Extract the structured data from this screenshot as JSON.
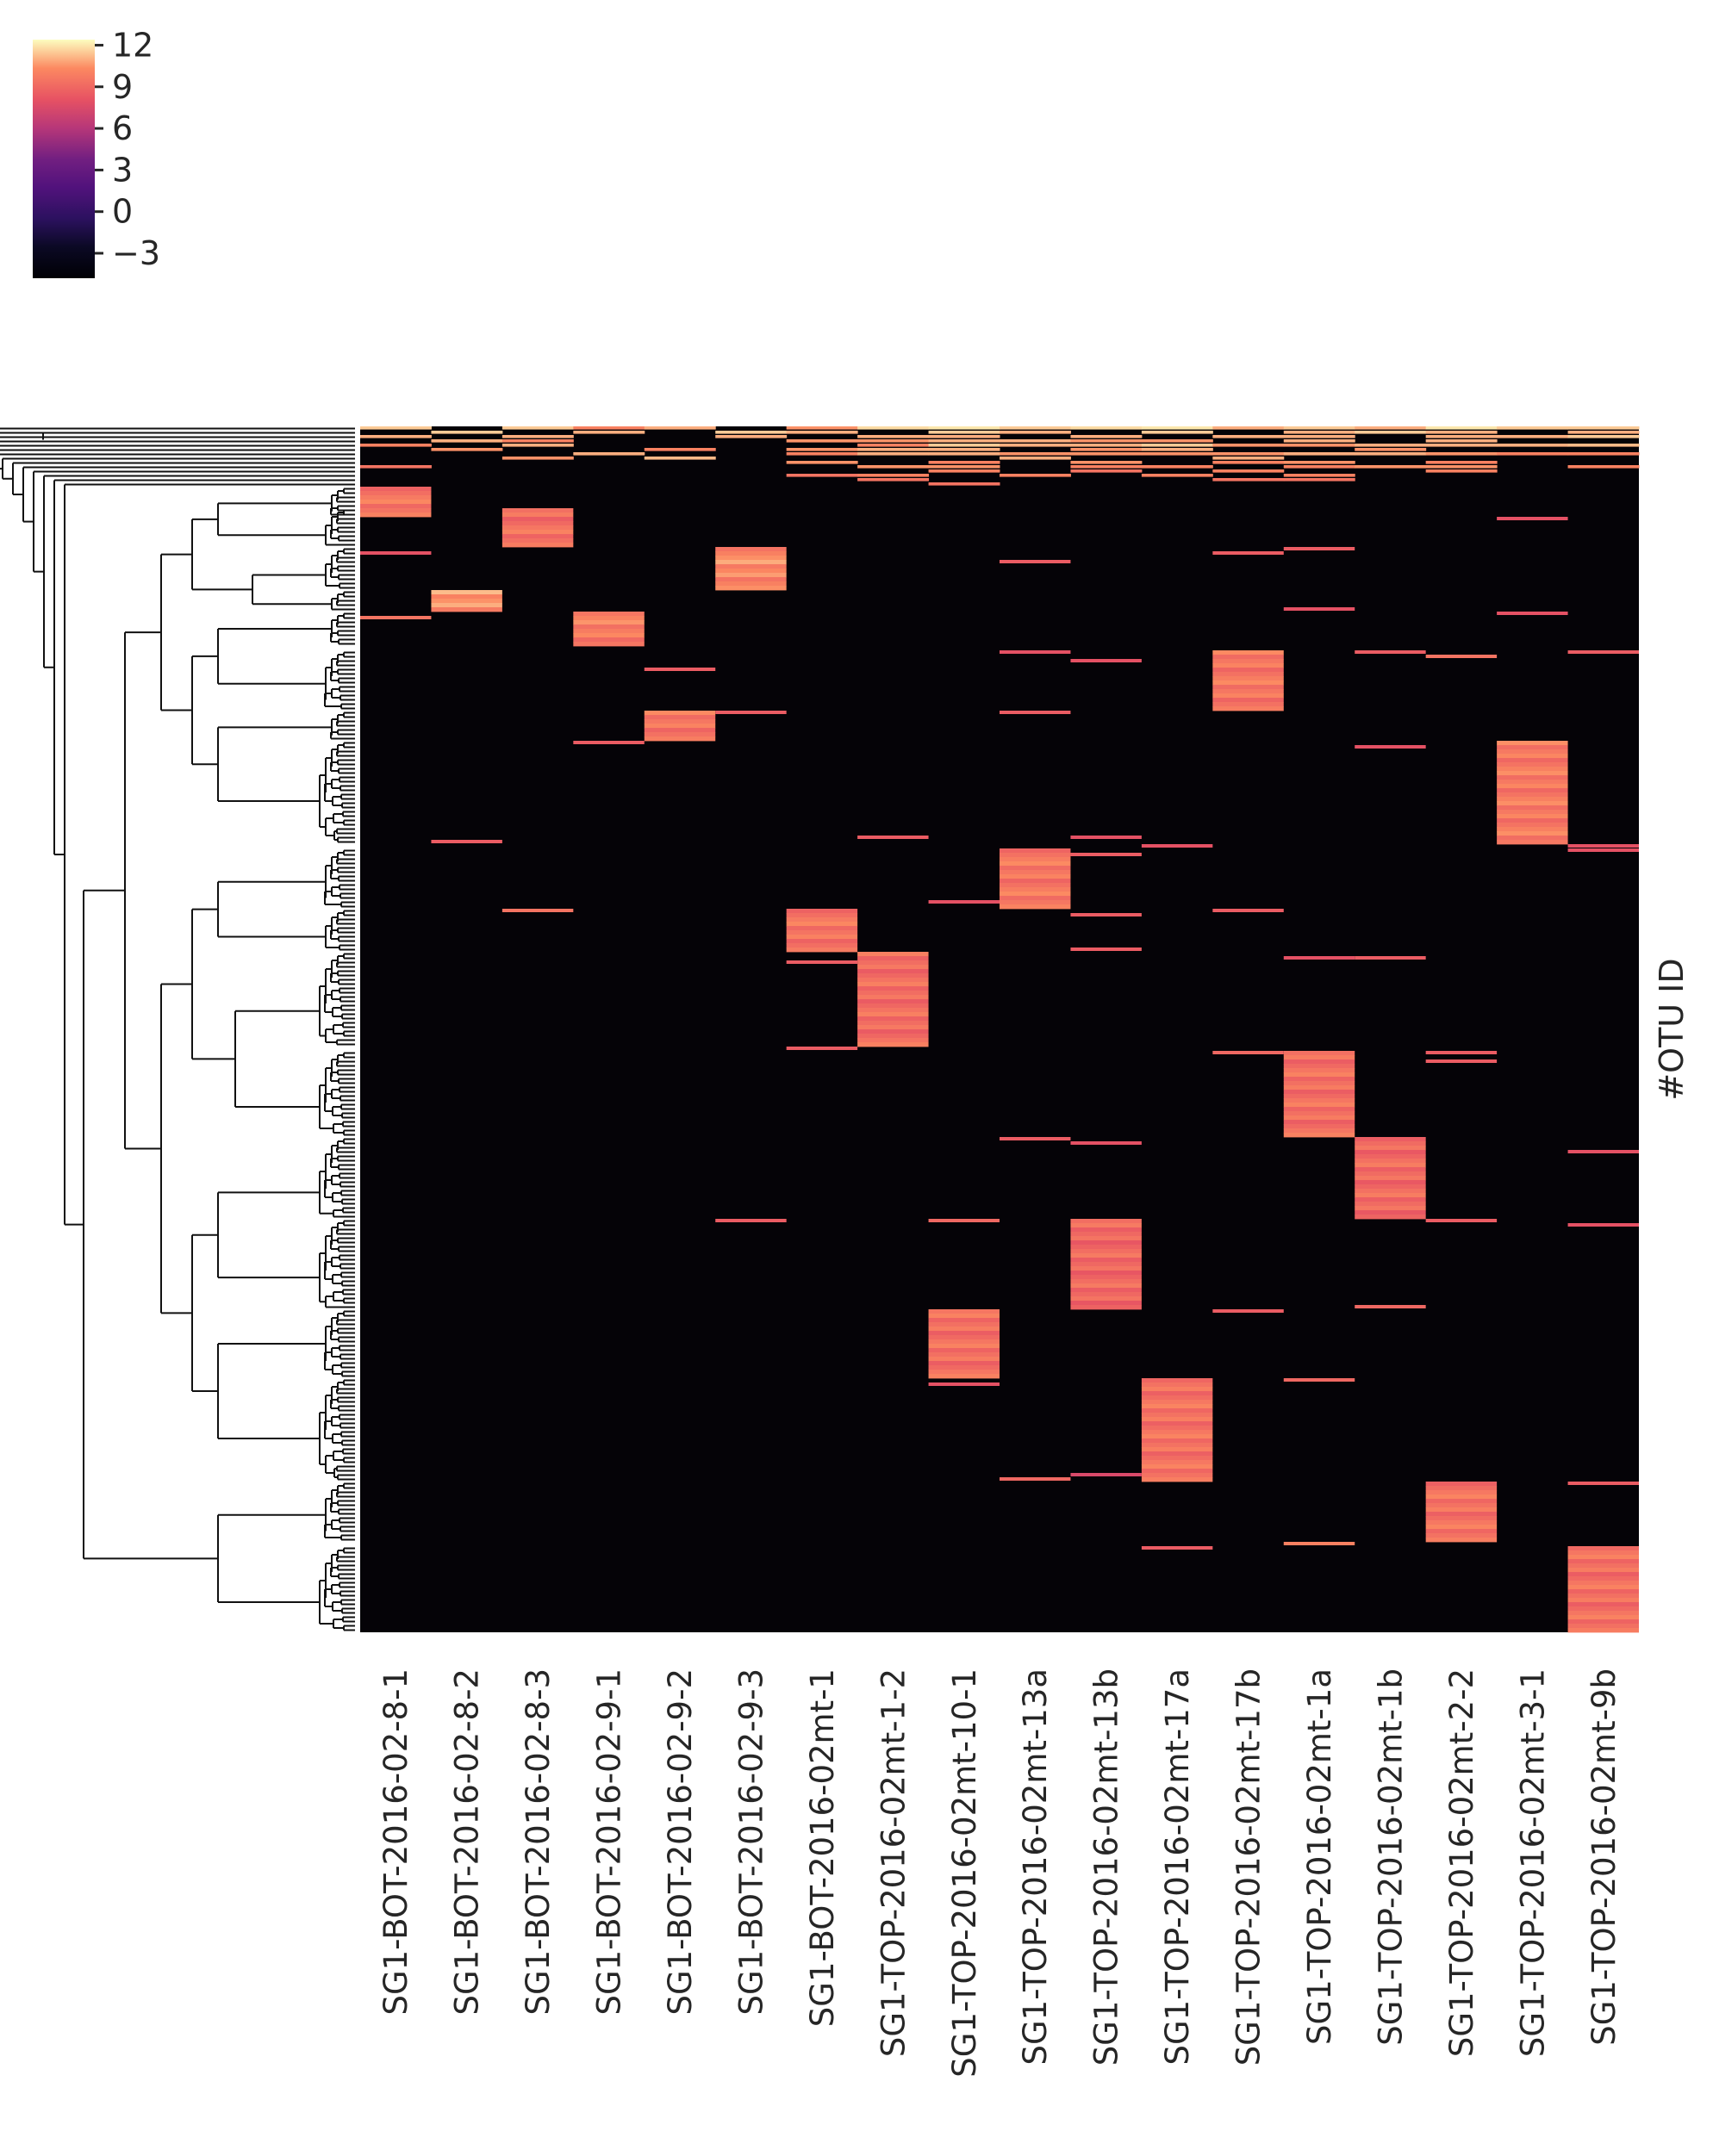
{
  "chart_data": {
    "type": "heatmap",
    "subtype": "clustermap",
    "colormap": "magma",
    "ylabel": "#OTU ID",
    "colorbar": {
      "vmin": -4.8,
      "vmax": 12.4,
      "ticks": [
        12,
        9,
        6,
        3,
        0,
        -3
      ],
      "tick_labels": [
        "12",
        "9",
        "6",
        "3",
        "0",
        "−3"
      ],
      "placement": "top-left"
    },
    "row_dendrogram": true,
    "n_rows": 280,
    "background_value": -4.8,
    "columns": [
      "SG1-BOT-2016-02-8-1",
      "SG1-BOT-2016-02-8-2",
      "SG1-BOT-2016-02-8-3",
      "SG1-BOT-2016-02-9-1",
      "SG1-BOT-2016-02-9-2",
      "SG1-BOT-2016-02-9-3",
      "SG1-BOT-2016-02mt-1",
      "SG1-TOP-2016-02mt-1-2",
      "SG1-TOP-2016-02mt-10-1",
      "SG1-TOP-2016-02mt-13a",
      "SG1-TOP-2016-02mt-13b",
      "SG1-TOP-2016-02mt-17a",
      "SG1-TOP-2016-02mt-17b",
      "SG1-TOP-2016-02mt-1a",
      "SG1-TOP-2016-02mt-1b",
      "SG1-TOP-2016-02mt-2-2",
      "SG1-TOP-2016-02mt-3-1",
      "SG1-TOP-2016-02mt-9b"
    ],
    "blocks": [
      {
        "column": "SG1-BOT-2016-02-8-1",
        "row_start": 14,
        "row_end": 21,
        "value": 9.5
      },
      {
        "column": "SG1-BOT-2016-02-8-3",
        "row_start": 19,
        "row_end": 28,
        "value": 9.3
      },
      {
        "column": "SG1-BOT-2016-02-9-3",
        "row_start": 28,
        "row_end": 38,
        "value": 10.2
      },
      {
        "column": "SG1-BOT-2016-02-8-2",
        "row_start": 38,
        "row_end": 43,
        "value": 10.5
      },
      {
        "column": "SG1-BOT-2016-02-9-1",
        "row_start": 43,
        "row_end": 51,
        "value": 9.8
      },
      {
        "column": "SG1-TOP-2016-02mt-17b",
        "row_start": 52,
        "row_end": 66,
        "value": 9.6
      },
      {
        "column": "SG1-BOT-2016-02-9-2",
        "row_start": 66,
        "row_end": 73,
        "value": 9.6
      },
      {
        "column": "SG1-TOP-2016-02mt-3-1",
        "row_start": 73,
        "row_end": 97,
        "value": 9.7
      },
      {
        "column": "SG1-TOP-2016-02mt-13a",
        "row_start": 98,
        "row_end": 112,
        "value": 9.6
      },
      {
        "column": "SG1-BOT-2016-02mt-1",
        "row_start": 112,
        "row_end": 122,
        "value": 9.5
      },
      {
        "column": "SG1-TOP-2016-02mt-1-2",
        "row_start": 122,
        "row_end": 144,
        "value": 9.2
      },
      {
        "column": "SG1-TOP-2016-02mt-1a",
        "row_start": 145,
        "row_end": 165,
        "value": 9.3
      },
      {
        "column": "SG1-TOP-2016-02mt-1b",
        "row_start": 165,
        "row_end": 184,
        "value": 9.1
      },
      {
        "column": "SG1-TOP-2016-02mt-13b",
        "row_start": 184,
        "row_end": 205,
        "value": 9.0
      },
      {
        "column": "SG1-TOP-2016-02mt-10-1",
        "row_start": 205,
        "row_end": 221,
        "value": 9.3
      },
      {
        "column": "SG1-TOP-2016-02mt-17a",
        "row_start": 221,
        "row_end": 245,
        "value": 9.4
      },
      {
        "column": "SG1-TOP-2016-02mt-2-2",
        "row_start": 245,
        "row_end": 259,
        "value": 9.4
      },
      {
        "column": "SG1-TOP-2016-02mt-9b",
        "row_start": 260,
        "row_end": 280,
        "value": 9.3
      }
    ],
    "scattered_cells": [
      {
        "column": "SG1-BOT-2016-02-8-1",
        "row": 29,
        "value": 8.0
      },
      {
        "column": "SG1-BOT-2016-02-8-1",
        "row": 44,
        "value": 9.5
      },
      {
        "column": "SG1-BOT-2016-02-8-2",
        "row": 96,
        "value": 8.5
      },
      {
        "column": "SG1-BOT-2016-02-8-3",
        "row": 112,
        "value": 9.5
      },
      {
        "column": "SG1-BOT-2016-02-9-1",
        "row": 73,
        "value": 8.5
      },
      {
        "column": "SG1-BOT-2016-02-9-2",
        "row": 56,
        "value": 8.5
      },
      {
        "column": "SG1-BOT-2016-02-9-3",
        "row": 66,
        "value": 8.5
      },
      {
        "column": "SG1-BOT-2016-02-9-3",
        "row": 184,
        "value": 8.5
      },
      {
        "column": "SG1-BOT-2016-02mt-1",
        "row": 124,
        "value": 8.5
      },
      {
        "column": "SG1-BOT-2016-02mt-1",
        "row": 144,
        "value": 8.5
      },
      {
        "column": "SG1-TOP-2016-02mt-1-2",
        "row": 95,
        "value": 8.5
      },
      {
        "column": "SG1-TOP-2016-02mt-10-1",
        "row": 110,
        "value": 8.0
      },
      {
        "column": "SG1-TOP-2016-02mt-10-1",
        "row": 184,
        "value": 9.0
      },
      {
        "column": "SG1-TOP-2016-02mt-10-1",
        "row": 222,
        "value": 8.0
      },
      {
        "column": "SG1-TOP-2016-02mt-13a",
        "row": 31,
        "value": 8.5
      },
      {
        "column": "SG1-TOP-2016-02mt-13a",
        "row": 52,
        "value": 8.0
      },
      {
        "column": "SG1-TOP-2016-02mt-13a",
        "row": 66,
        "value": 8.5
      },
      {
        "column": "SG1-TOP-2016-02mt-13a",
        "row": 165,
        "value": 8.5
      },
      {
        "column": "SG1-TOP-2016-02mt-13a",
        "row": 244,
        "value": 9.0
      },
      {
        "column": "SG1-TOP-2016-02mt-13b",
        "row": 54,
        "value": 8.0
      },
      {
        "column": "SG1-TOP-2016-02mt-13b",
        "row": 95,
        "value": 8.0
      },
      {
        "column": "SG1-TOP-2016-02mt-13b",
        "row": 99,
        "value": 8.5
      },
      {
        "column": "SG1-TOP-2016-02mt-13b",
        "row": 113,
        "value": 8.5
      },
      {
        "column": "SG1-TOP-2016-02mt-13b",
        "row": 121,
        "value": 8.5
      },
      {
        "column": "SG1-TOP-2016-02mt-13b",
        "row": 166,
        "value": 8.0
      },
      {
        "column": "SG1-TOP-2016-02mt-13b",
        "row": 243,
        "value": 7.5
      },
      {
        "column": "SG1-TOP-2016-02mt-17a",
        "row": 97,
        "value": 8.0
      },
      {
        "column": "SG1-TOP-2016-02mt-17a",
        "row": 260,
        "value": 8.5
      },
      {
        "column": "SG1-TOP-2016-02mt-17b",
        "row": 29,
        "value": 8.5
      },
      {
        "column": "SG1-TOP-2016-02mt-17b",
        "row": 112,
        "value": 8.5
      },
      {
        "column": "SG1-TOP-2016-02mt-17b",
        "row": 145,
        "value": 9.0
      },
      {
        "column": "SG1-TOP-2016-02mt-17b",
        "row": 205,
        "value": 8.5
      },
      {
        "column": "SG1-TOP-2016-02mt-1a",
        "row": 28,
        "value": 8.5
      },
      {
        "column": "SG1-TOP-2016-02mt-1a",
        "row": 42,
        "value": 8.0
      },
      {
        "column": "SG1-TOP-2016-02mt-1a",
        "row": 123,
        "value": 8.0
      },
      {
        "column": "SG1-TOP-2016-02mt-1a",
        "row": 221,
        "value": 9.0
      },
      {
        "column": "SG1-TOP-2016-02mt-1a",
        "row": 259,
        "value": 10.0
      },
      {
        "column": "SG1-TOP-2016-02mt-1b",
        "row": 52,
        "value": 8.5
      },
      {
        "column": "SG1-TOP-2016-02mt-1b",
        "row": 74,
        "value": 8.0
      },
      {
        "column": "SG1-TOP-2016-02mt-1b",
        "row": 123,
        "value": 8.5
      },
      {
        "column": "SG1-TOP-2016-02mt-1b",
        "row": 204,
        "value": 9.0
      },
      {
        "column": "SG1-TOP-2016-02mt-2-2",
        "row": 53,
        "value": 9.5
      },
      {
        "column": "SG1-TOP-2016-02mt-2-2",
        "row": 145,
        "value": 8.5
      },
      {
        "column": "SG1-TOP-2016-02mt-2-2",
        "row": 147,
        "value": 8.5
      },
      {
        "column": "SG1-TOP-2016-02mt-2-2",
        "row": 184,
        "value": 8.5
      },
      {
        "column": "SG1-TOP-2016-02mt-3-1",
        "row": 21,
        "value": 8.0
      },
      {
        "column": "SG1-TOP-2016-02mt-3-1",
        "row": 43,
        "value": 8.0
      },
      {
        "column": "SG1-TOP-2016-02mt-9b",
        "row": 52,
        "value": 8.5
      },
      {
        "column": "SG1-TOP-2016-02mt-9b",
        "row": 97,
        "value": 8.0
      },
      {
        "column": "SG1-TOP-2016-02mt-9b",
        "row": 98,
        "value": 8.0
      },
      {
        "column": "SG1-TOP-2016-02mt-9b",
        "row": 168,
        "value": 8.0
      },
      {
        "column": "SG1-TOP-2016-02mt-9b",
        "row": 185,
        "value": 8.0
      },
      {
        "column": "SG1-TOP-2016-02mt-9b",
        "row": 245,
        "value": 8.5
      }
    ],
    "shared_rows": {
      "row_start": 0,
      "row_end": 14,
      "note_values": "dense mix of high values across most columns at the top of the ordering",
      "pattern": [
        [
          11.5,
          0,
          11.5,
          10,
          11,
          0,
          10.5,
          11.8,
          12,
          11.5,
          11.8,
          12,
          11,
          11.5,
          11,
          12,
          11.5,
          11.5
        ],
        [
          0,
          11.5,
          0,
          11,
          0,
          11.5,
          11,
          0,
          11.5,
          11,
          0,
          11.5,
          0,
          11,
          11.5,
          11,
          0,
          11
        ],
        [
          11,
          0,
          11,
          0,
          0,
          11,
          0,
          11,
          11,
          0,
          11,
          0,
          11,
          11,
          0,
          11,
          11,
          11.5
        ],
        [
          0,
          11,
          10,
          0,
          0,
          0,
          10.5,
          10.5,
          11,
          11,
          10.5,
          10.5,
          0,
          11,
          0,
          11,
          0,
          0
        ],
        [
          10,
          0,
          11,
          0,
          0,
          0,
          0,
          10,
          11.5,
          11,
          11,
          11.5,
          10.5,
          10.5,
          11,
          11,
          11,
          11.2
        ],
        [
          0,
          10.5,
          0,
          0,
          10,
          0,
          10.5,
          11,
          11,
          0,
          10.5,
          11,
          0,
          0,
          10.5,
          0,
          0,
          0
        ],
        [
          0,
          0,
          0,
          11,
          0,
          0,
          10,
          11,
          11,
          10.5,
          10.5,
          10.5,
          10.5,
          11,
          11,
          10.5,
          10,
          10
        ],
        [
          0,
          0,
          10.5,
          0,
          11.2,
          0,
          0,
          0,
          0,
          11,
          0,
          0,
          11,
          0,
          0,
          0,
          0,
          0
        ],
        [
          0,
          0,
          0,
          0,
          0,
          0,
          10.5,
          0,
          10,
          0,
          10.5,
          0,
          10,
          10.5,
          0,
          10,
          0,
          0
        ],
        [
          9.5,
          0,
          0,
          0,
          0,
          0,
          0,
          10.5,
          10.5,
          0,
          10,
          10,
          0,
          10,
          10.5,
          10.5,
          0,
          10
        ],
        [
          0,
          0,
          0,
          0,
          0,
          0,
          0,
          0,
          10,
          0,
          9.5,
          0,
          10,
          0,
          0,
          10,
          0,
          0
        ],
        [
          0,
          0,
          0,
          0,
          0,
          0,
          9.5,
          10,
          0,
          10,
          0,
          10,
          0,
          10,
          0,
          0,
          0,
          0
        ],
        [
          0,
          0,
          0,
          0,
          0,
          0,
          0,
          9.5,
          0,
          0,
          0,
          0,
          9.5,
          9.5,
          0,
          0,
          0,
          0
        ],
        [
          0,
          0,
          0,
          0,
          0,
          0,
          0,
          0,
          9.5,
          0,
          0,
          0,
          0,
          0,
          0,
          0,
          0,
          0
        ]
      ]
    }
  }
}
